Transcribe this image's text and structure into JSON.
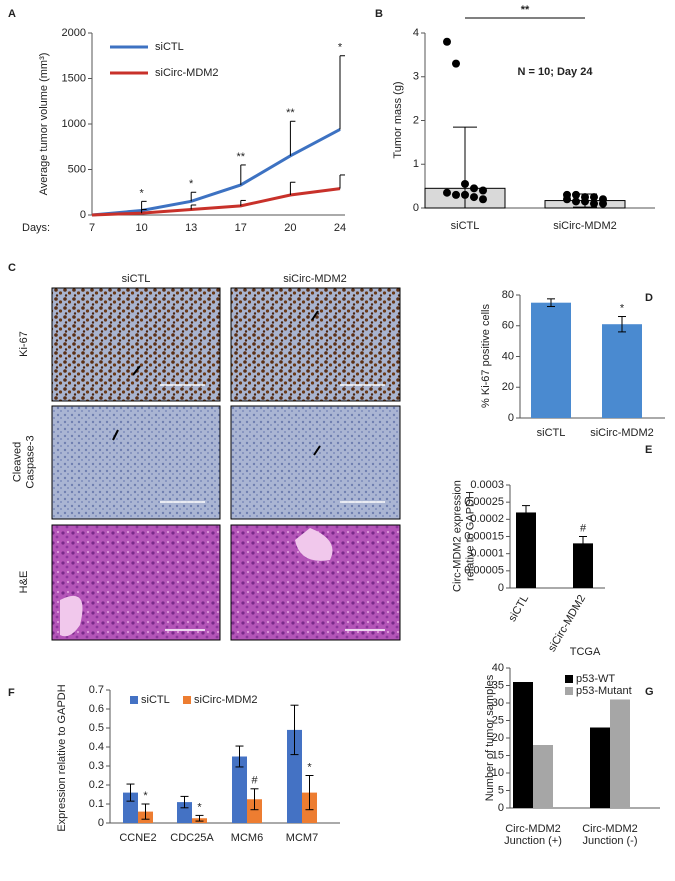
{
  "image_panel": {
    "panel": "C",
    "columns": [
      "siCTL",
      "siCirc-MDM2"
    ],
    "rows": [
      [
        "Ki-67"
      ],
      [
        "Cleaved",
        "Caspase-3"
      ],
      [
        "H&E"
      ]
    ]
  },
  "chart_data": [
    {
      "panel": "A",
      "type": "line",
      "ylabel": "Average tumor volume (mm³)",
      "xlabel": "Days:",
      "categories": [
        7,
        10,
        13,
        17,
        20,
        24
      ],
      "series": [
        {
          "name": "siCTL",
          "color": "#3d72c2",
          "values": [
            0,
            50,
            150,
            330,
            650,
            940
          ],
          "errors": [
            0,
            100,
            100,
            220,
            380,
            810
          ]
        },
        {
          "name": "siCirc-MDM2",
          "color": "#c8312a",
          "values": [
            0,
            20,
            60,
            100,
            220,
            290
          ],
          "errors": [
            0,
            40,
            50,
            60,
            140,
            150
          ]
        }
      ],
      "annotations": [
        null,
        "*",
        "*",
        "**",
        "**",
        "*"
      ],
      "ylim": [
        0,
        2000
      ],
      "yticks": [
        0,
        500,
        1000,
        1500,
        2000
      ]
    },
    {
      "panel": "B",
      "type": "bar",
      "ylabel": "Tumor mass (g)",
      "note": "N = 10; Day 24",
      "significance": "**",
      "categories": [
        "siCTL",
        "siCirc-MDM2"
      ],
      "color": "#d9d9d9",
      "values": [
        0.45,
        0.17
      ],
      "errors": [
        1.4,
        0.15
      ],
      "points": [
        [
          3.8,
          3.3,
          0.55,
          0.45,
          0.4,
          0.35,
          0.3,
          0.3,
          0.25,
          0.2
        ],
        [
          0.3,
          0.3,
          0.25,
          0.25,
          0.2,
          0.2,
          0.15,
          0.15,
          0.1,
          0.1
        ]
      ],
      "ylim": [
        0,
        4
      ],
      "yticks": [
        0,
        1,
        2,
        3,
        4
      ]
    },
    {
      "panel": "D",
      "type": "bar",
      "ylabel": "% Ki-67  positive cells",
      "categories": [
        "siCTL",
        "siCirc-MDM2"
      ],
      "color": "#4a8ad0",
      "values": [
        75,
        61
      ],
      "errors": [
        2.5,
        5
      ],
      "annotations": [
        null,
        "*"
      ],
      "ylim": [
        0,
        80
      ],
      "yticks": [
        0,
        20,
        40,
        60,
        80
      ]
    },
    {
      "panel": "E",
      "type": "bar",
      "ylabel": [
        "Circ-MDM2 expression",
        "relative to GAPDH"
      ],
      "categories": [
        "siCTL",
        "siCirc-MDM2"
      ],
      "color": "#000000",
      "values": [
        0.00022,
        0.00013
      ],
      "errors": [
        2e-05,
        2e-05
      ],
      "annotations": [
        null,
        "#"
      ],
      "ylim": [
        0,
        0.0003
      ],
      "yticks": [
        0,
        5e-05,
        0.0001,
        0.00015,
        0.0002,
        0.00025,
        0.0003
      ]
    },
    {
      "panel": "F",
      "type": "bar",
      "ylabel": "Expression relative  to GAPDH",
      "categories": [
        "CCNE2",
        "CDC25A",
        "MCM6",
        "MCM7"
      ],
      "series": [
        {
          "name": "siCTL",
          "color": "#4472c4",
          "values": [
            0.16,
            0.11,
            0.35,
            0.49
          ],
          "errors": [
            0.045,
            0.03,
            0.055,
            0.13
          ]
        },
        {
          "name": "siCirc-MDM2",
          "color": "#ed7d31",
          "values": [
            0.06,
            0.025,
            0.125,
            0.16
          ],
          "errors": [
            0.04,
            0.015,
            0.055,
            0.09
          ],
          "annotations": [
            "*",
            "*",
            "#",
            "*"
          ]
        }
      ],
      "ylim": [
        0,
        0.7
      ],
      "yticks": [
        0,
        0.1,
        0.2,
        0.3,
        0.4,
        0.5,
        0.6,
        0.7
      ]
    },
    {
      "panel": "G",
      "type": "bar",
      "title": "TCGA",
      "ylabel": "Number of tumor samples",
      "categories": [
        [
          "Circ-MDM2",
          "Junction (+)"
        ],
        [
          "Circ-MDM2",
          "Junction (-)"
        ]
      ],
      "series": [
        {
          "name": "p53-WT",
          "color": "#000000",
          "values": [
            36,
            23
          ]
        },
        {
          "name": "p53-Mutant",
          "color": "#a6a6a6",
          "values": [
            18,
            31
          ]
        }
      ],
      "ylim": [
        0,
        40
      ],
      "yticks": [
        0,
        5,
        10,
        15,
        20,
        25,
        30,
        35,
        40
      ]
    }
  ]
}
